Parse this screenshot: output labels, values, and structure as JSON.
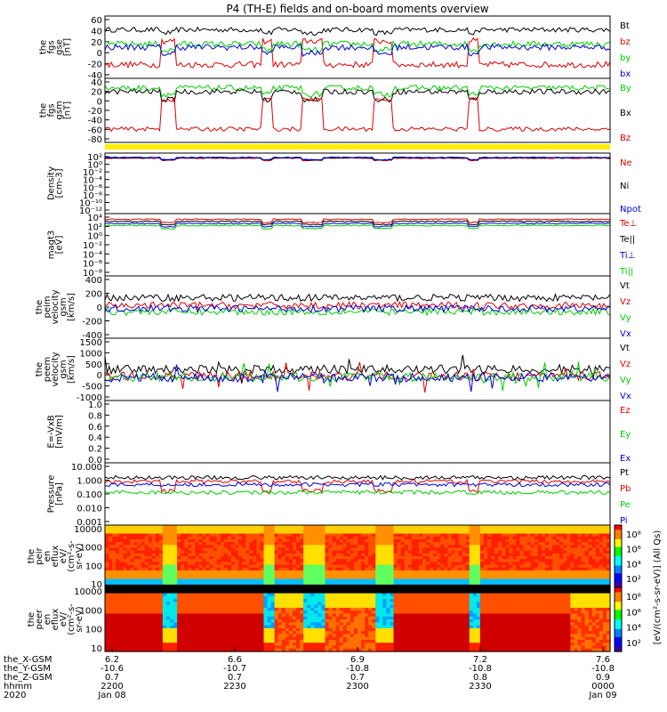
{
  "colors": {
    "black": "#000000",
    "red": "#e00000",
    "green": "#00d000",
    "blue": "#0000e0",
    "yellow": "#ffee00"
  },
  "chart_data": [
    {
      "type": "line",
      "title": "P4 (TH-E) fields and on-board moments overview",
      "panels": [
        {
          "id": "fgs_gse",
          "ylabel": [
            "the",
            "fgs",
            "gse",
            "[nT]"
          ],
          "yticks": [
            "60",
            "40",
            "20",
            "0",
            "-20",
            "-40"
          ],
          "ylim": [
            -40,
            60
          ],
          "legend": [
            {
              "label": "Bt",
              "color": "black"
            },
            {
              "label": "bz",
              "color": "red"
            },
            {
              "label": "by",
              "color": "green"
            },
            {
              "label": "bx",
              "color": "blue"
            }
          ]
        },
        {
          "id": "fgs_gsm",
          "ylabel": [
            "the",
            "fgs",
            "gsm",
            "[nT]"
          ],
          "yticks": [
            "40",
            "20",
            "0",
            "-20",
            "-40",
            "-60",
            "-80"
          ],
          "ylim": [
            -80,
            40
          ],
          "legend": [
            {
              "label": "By",
              "color": "green"
            },
            {
              "label": "Bx",
              "color": "black"
            },
            {
              "label": "Bz",
              "color": "red"
            }
          ]
        },
        {
          "id": "density",
          "ylabel": [
            "Density",
            "[cm-3]"
          ],
          "yticks": [
            "10²",
            "10⁰",
            "10⁻²",
            "10⁻⁴",
            "10⁻⁶",
            "10⁻⁸",
            "10⁻¹⁰",
            "10⁻¹²"
          ],
          "ylim": [
            -12,
            2
          ],
          "log": true,
          "legend": [
            {
              "label": "Ne",
              "color": "red"
            },
            {
              "label": "Ni",
              "color": "black"
            },
            {
              "label": "Npot",
              "color": "blue"
            }
          ]
        },
        {
          "id": "temperature",
          "ylabel": [
            "magt3",
            "[eV]"
          ],
          "yticks": [
            "10⁴",
            "10²",
            "10⁰",
            "10⁻²",
            "10⁻⁴",
            "10⁻⁶",
            "10⁻⁸"
          ],
          "ylim": [
            -8,
            4
          ],
          "log": true,
          "legend": [
            {
              "label": "Te⊥",
              "color": "red"
            },
            {
              "label": "Te||",
              "color": "black"
            },
            {
              "label": "Ti⊥",
              "color": "blue"
            },
            {
              "label": "Ti||",
              "color": "green"
            }
          ]
        },
        {
          "id": "peim_velocity",
          "ylabel": [
            "the",
            "peim",
            "velocity",
            "gsm",
            "[km/s]"
          ],
          "yticks": [
            "400",
            "200",
            "0",
            "-200",
            "-400"
          ],
          "ylim": [
            -400,
            400
          ],
          "legend": [
            {
              "label": "Vt",
              "color": "black"
            },
            {
              "label": "Vz",
              "color": "red"
            },
            {
              "label": "Vy",
              "color": "green"
            },
            {
              "label": "Vx",
              "color": "blue"
            }
          ]
        },
        {
          "id": "peem_velocity",
          "ylabel": [
            "the",
            "peem",
            "velocity",
            "gsm",
            "[km/s]"
          ],
          "yticks": [
            "1500",
            "1000",
            "500",
            "0",
            "-500",
            "-1000"
          ],
          "ylim": [
            -1000,
            1500
          ],
          "legend": [
            {
              "label": "Vt",
              "color": "black"
            },
            {
              "label": "Vz",
              "color": "red"
            },
            {
              "label": "Vy",
              "color": "green"
            },
            {
              "label": "Vx",
              "color": "blue"
            }
          ]
        },
        {
          "id": "efield",
          "ylabel": [
            "E=-VxB",
            "[mV/m]"
          ],
          "yticks": [
            "1.0",
            "0.8",
            "0.6",
            "0.4",
            "0.2",
            "0.0"
          ],
          "ylim": [
            0,
            1
          ],
          "legend": [
            {
              "label": "Ez",
              "color": "red"
            },
            {
              "label": "Ey",
              "color": "green"
            },
            {
              "label": "Ex",
              "color": "blue"
            }
          ]
        },
        {
          "id": "pressure",
          "ylabel": [
            "Pressure",
            "[nPa]"
          ],
          "yticks": [
            "10.000",
            "1.000",
            "0.100",
            "0.010",
            "0.001"
          ],
          "ylim": [
            -3,
            1
          ],
          "log": true,
          "legend": [
            {
              "label": "Pt",
              "color": "black"
            },
            {
              "label": "Pb",
              "color": "red"
            },
            {
              "label": "Pe",
              "color": "green"
            },
            {
              "label": "Pi",
              "color": "blue"
            }
          ]
        },
        {
          "id": "peir_spec",
          "type": "heatmap",
          "ylabel": [
            "the",
            "peir",
            "en",
            "eflux",
            "eV/",
            "(cm²-s-",
            "sr-eV)"
          ],
          "yticks": [
            "10000",
            "1000",
            "100",
            "10"
          ],
          "ylim": [
            10,
            20000
          ]
        },
        {
          "id": "peer_spec",
          "type": "heatmap",
          "ylabel": [
            "the",
            "peer",
            "en",
            "eflux",
            "eV/",
            "(cm²-s-",
            "sr-eV)"
          ],
          "yticks": [
            "10000",
            "1000",
            "100",
            "10"
          ],
          "ylim": [
            10,
            20000
          ]
        }
      ],
      "colorbar": {
        "label": "[eV/(cm²-s-sr-eV)] (All Qs)",
        "ticks_top": [
          "10⁸",
          "10⁶",
          "10⁴",
          "10²"
        ],
        "ticks_bottom": [
          "10⁸",
          "10⁶",
          "10⁴",
          "10²"
        ]
      },
      "x_axis": {
        "row_labels": [
          "the_X-GSM",
          "the_Y-GSM",
          "the_Z-GSM",
          "hhmm",
          "2020"
        ],
        "ticks": [
          {
            "x": "6.2",
            "y": "-10.6",
            "z": "0.7",
            "hhmm": "2200",
            "date": "Jan 08"
          },
          {
            "x": "6.6",
            "y": "-10.7",
            "z": "0.7",
            "hhmm": "2230",
            "date": ""
          },
          {
            "x": "6.9",
            "y": "-10.8",
            "z": "0.7",
            "hhmm": "2300",
            "date": ""
          },
          {
            "x": "7.2",
            "y": "-10.8",
            "z": "0.8",
            "hhmm": "2330",
            "date": ""
          },
          {
            "x": "7.6",
            "y": "-10.8",
            "z": "0.9",
            "hhmm": "0000",
            "date": "Jan 09"
          }
        ]
      },
      "segments": [
        {
          "start": 0.0,
          "end": 0.11,
          "state": "in"
        },
        {
          "start": 0.11,
          "end": 0.14,
          "state": "out"
        },
        {
          "start": 0.14,
          "end": 0.31,
          "state": "in"
        },
        {
          "start": 0.31,
          "end": 0.33,
          "state": "out"
        },
        {
          "start": 0.33,
          "end": 0.39,
          "state": "mix"
        },
        {
          "start": 0.39,
          "end": 0.43,
          "state": "out"
        },
        {
          "start": 0.43,
          "end": 0.53,
          "state": "mix"
        },
        {
          "start": 0.53,
          "end": 0.57,
          "state": "out"
        },
        {
          "start": 0.57,
          "end": 0.72,
          "state": "in"
        },
        {
          "start": 0.72,
          "end": 0.74,
          "state": "out"
        },
        {
          "start": 0.74,
          "end": 0.92,
          "state": "in"
        },
        {
          "start": 0.92,
          "end": 1.0,
          "state": "mix"
        }
      ]
    }
  ]
}
